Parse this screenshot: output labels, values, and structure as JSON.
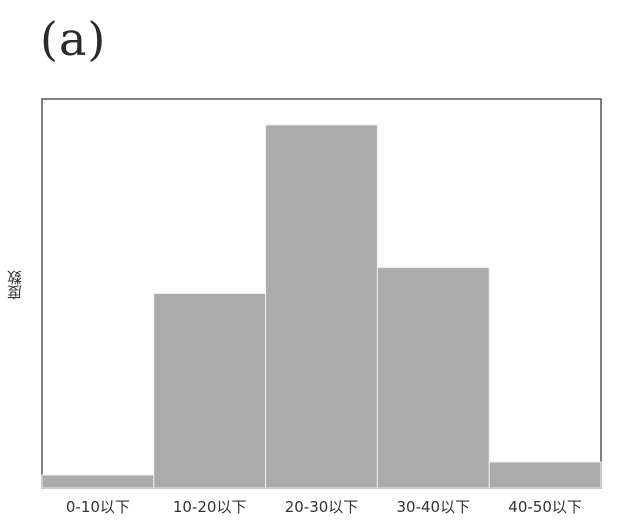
{
  "panel_label": "(a)",
  "chart_data": {
    "type": "bar",
    "title": "",
    "xlabel": "",
    "ylabel": "度数",
    "categories": [
      "0-10以下",
      "10-20以下",
      "20-30以下",
      "30-40以下",
      "40-50以下"
    ],
    "values": [
      1,
      15,
      28,
      17,
      2
    ],
    "ylim": [
      0,
      30
    ],
    "grid": false,
    "legend": "none",
    "colors": {
      "bar_fill": "#ababab",
      "bar_stroke": "#ededed",
      "axes_frame": "#555555",
      "text": "#333333"
    }
  }
}
